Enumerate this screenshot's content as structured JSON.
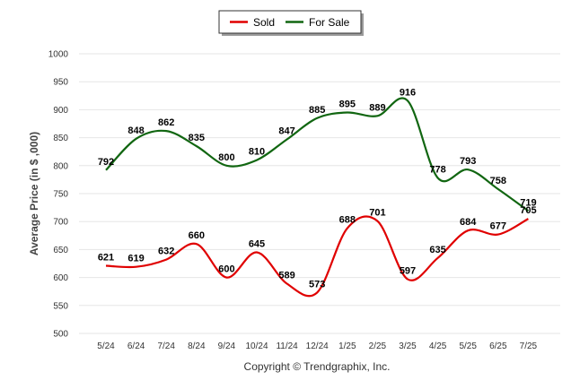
{
  "chart_data": {
    "type": "line",
    "categories": [
      "5/24",
      "6/24",
      "7/24",
      "8/24",
      "9/24",
      "10/24",
      "11/24",
      "12/24",
      "1/25",
      "2/25",
      "3/25",
      "4/25",
      "5/25",
      "6/25",
      "7/25"
    ],
    "series": [
      {
        "name": "Sold",
        "color": "#e00000",
        "values": [
          621,
          619,
          632,
          660,
          600,
          645,
          589,
          573,
          688,
          701,
          597,
          635,
          684,
          677,
          705
        ]
      },
      {
        "name": "For Sale",
        "color": "#116611",
        "values": [
          792,
          848,
          862,
          835,
          800,
          810,
          847,
          885,
          895,
          889,
          916,
          778,
          793,
          758,
          719
        ]
      }
    ],
    "ylabel": "Average Price (in $ ,000)",
    "ylim": [
      500,
      1000
    ],
    "yticks": [
      "500",
      "550",
      "600",
      "650",
      "700",
      "750",
      "800",
      "850",
      "900",
      "950",
      "1000"
    ],
    "legend_position": "top-center",
    "grid": true,
    "credit": "Copyright © Trendgraphix, Inc."
  }
}
